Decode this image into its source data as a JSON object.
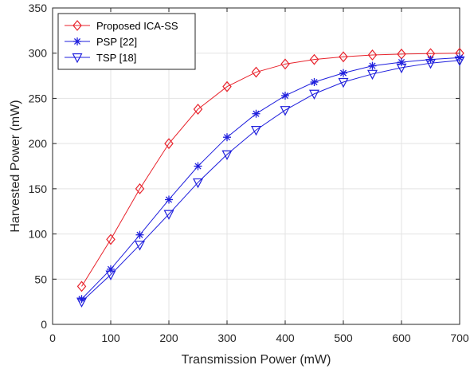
{
  "chart_data": {
    "type": "line",
    "title": "",
    "xlabel": "Transmission Power (mW)",
    "ylabel": "Harvested Power (mW)",
    "xlim": [
      0,
      700
    ],
    "ylim": [
      0,
      350
    ],
    "xticks": [
      0,
      100,
      200,
      300,
      400,
      500,
      600,
      700
    ],
    "yticks": [
      0,
      50,
      100,
      150,
      200,
      250,
      300,
      350
    ],
    "grid": true,
    "legend_position": "top-left",
    "x": [
      50,
      100,
      150,
      200,
      250,
      300,
      350,
      400,
      450,
      500,
      550,
      600,
      650,
      700
    ],
    "series": [
      {
        "name": "Proposed ICA-SS",
        "color": "#e8222b",
        "marker": "diamond",
        "values": [
          42,
          94,
          150,
          200,
          238,
          263,
          279,
          288,
          293,
          296,
          298,
          299,
          299.5,
          300
        ]
      },
      {
        "name": "PSP [22]",
        "color": "#1f1fdd",
        "marker": "asterisk",
        "values": [
          28,
          61,
          99,
          138,
          175,
          207,
          233,
          253,
          268,
          278,
          286,
          290,
          293,
          295
        ]
      },
      {
        "name": "TSP [18]",
        "color": "#1f1fdd",
        "marker": "triangle-down",
        "values": [
          25,
          55,
          88,
          122,
          157,
          188,
          215,
          237,
          255,
          268,
          277,
          284,
          289,
          292
        ]
      }
    ]
  }
}
